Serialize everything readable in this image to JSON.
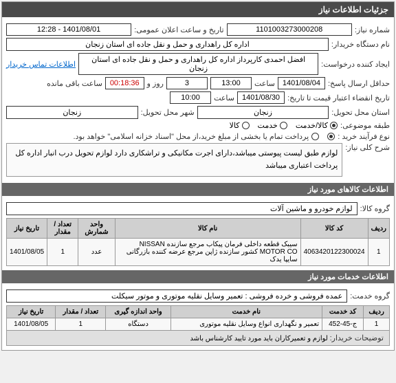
{
  "main_header": "جزئیات اطلاعات نیاز",
  "fields": {
    "need_number_label": "شماره نیاز:",
    "need_number": "1101003273000208",
    "announce_label": "تاریخ و ساعت اعلان عمومی:",
    "announce_value": "1401/08/01 - 12:28",
    "buyer_label": "نام دستگاه خریدار:",
    "buyer_value": "اداره کل راهداری و حمل و نقل جاده ای استان زنجان",
    "creator_label": "ایجاد کننده درخواست:",
    "creator_value": "افضل احمدی کارپرداز اداره کل راهداری و حمل و نقل جاده ای استان زنجان",
    "contact_link": "اطلاعات تماس خریدار",
    "deadline_label": "حداقل ارسال پاسخ:",
    "deadline_date": "1401/08/04",
    "time_label": "ساعت",
    "deadline_time": "13:00",
    "days_label": "روز و",
    "days_value": "3",
    "remain_timer": "00:18:36",
    "remain_label": "ساعت باقی مانده",
    "credit_label": "تاریخ انقضاء اعتبار قیمت تا تاریخ:",
    "credit_date": "1401/08/30",
    "credit_time": "10:00",
    "province_label": "استان محل تحویل:",
    "province_value": "زنجان",
    "city_label": "شهر محل تحویل:",
    "city_value": "زنجان",
    "class_label": "طبقه موضوعی:",
    "class_goods": "کالا/خدمت",
    "class_service": "خدمت",
    "class_goods_only": "کالا",
    "process_label": "نوع فرآیند خرید :",
    "process_a": "گزینه",
    "process_b": "گزینه",
    "process_note": "پرداخت تمام یا بخشی از مبلغ خرید،از محل \"اسناد خزانه اسلامی\" خواهد بود.",
    "desc_label": "شرح کلی نیاز:",
    "desc_text": "لوازم طبق لیست پیوستی میباشد،دارای اجرت مکانیکی و تراشکاری دارد لوازم تحویل درب انبار اداره کل پرداخت اعتباری میباشد"
  },
  "goods_section": {
    "header": "اطلاعات کالاهای مورد نیاز",
    "group_label": "گروه کالا:",
    "group_value": "لوازم خودرو و ماشین آلات",
    "cols": {
      "row": "ردیف",
      "code": "کد کالا",
      "name": "نام کالا",
      "unit": "واحد شمارش",
      "qty": "تعداد / مقدار",
      "date": "تاریخ نیاز"
    },
    "r1": {
      "idx": "1",
      "code": "4063420122300024",
      "name": "سیبک قطعه داخلی فرمان پیکاب مرجع سازنده NISSAN MOTOR CO کشور سازنده ژاپن مرجع عرضه کننده بازرگانی سایپا یدک",
      "unit": "عدد",
      "qty": "1",
      "date": "1401/08/05"
    }
  },
  "service_section": {
    "header": "اطلاعات خدمات مورد نیاز",
    "group_label": "گروه خدمت:",
    "group_value": "عمده فروشی و خرده فروشی : تعمیر وسایل نقلیه موتوری و موتور سیکلت",
    "cols": {
      "row": "ردیف",
      "code": "کد خدمت",
      "name": "نام خدمت",
      "unit": "واحد اندازه گیری",
      "qty": "تعداد / مقدار",
      "date": "تاریخ نیاز"
    },
    "r1": {
      "idx": "1",
      "code": "ج-45-452",
      "name": "تعمیر و نگهداری انواع وسایل نقلیه موتوری",
      "unit": "دستگاه",
      "qty": "1",
      "date": "1401/08/05"
    }
  },
  "buyer_note_label": "توضیحات خریدار:",
  "buyer_note": "لوازم و تعمیرکاران باید مورد تایید کارشناس باشد"
}
